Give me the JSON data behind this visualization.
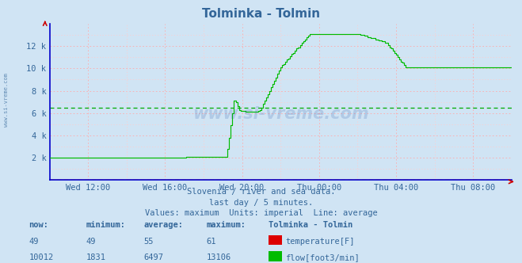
{
  "title": "Tolminka - Tolmin",
  "bg_color": "#d0e4f4",
  "plot_bg_color": "#d0e4f4",
  "grid_color_major": "#ffaaaa",
  "grid_color_minor": "#ffcccc",
  "x_labels": [
    "Wed 12:00",
    "Wed 16:00",
    "Wed 20:00",
    "Thu 00:00",
    "Thu 04:00",
    "Thu 08:00"
  ],
  "y_tick_vals": [
    0,
    2000,
    4000,
    6000,
    8000,
    10000,
    12000
  ],
  "y_tick_labels": [
    "",
    "2 k",
    "4 k",
    "6 k",
    "8 k",
    "10 k",
    "12 k"
  ],
  "ylim": [
    0,
    14000
  ],
  "temp_color": "#dd0000",
  "flow_color": "#00bb00",
  "avg_flow_color": "#00aa00",
  "avg_temp_color": "#cc0000",
  "temp_avg": 55,
  "temp_max": 61,
  "temp_min": 49,
  "temp_now": 49,
  "flow_avg": 6497,
  "flow_max": 13106,
  "flow_min": 1831,
  "flow_now": 10012,
  "subtitle1": "Slovenia / river and sea data.",
  "subtitle2": "last day / 5 minutes.",
  "subtitle3": "Values: maximum  Units: imperial  Line: average",
  "watermark": "www.si-vreme.com",
  "axis_color": "#cc0000",
  "spine_color": "#0000cc",
  "text_color": "#336699"
}
